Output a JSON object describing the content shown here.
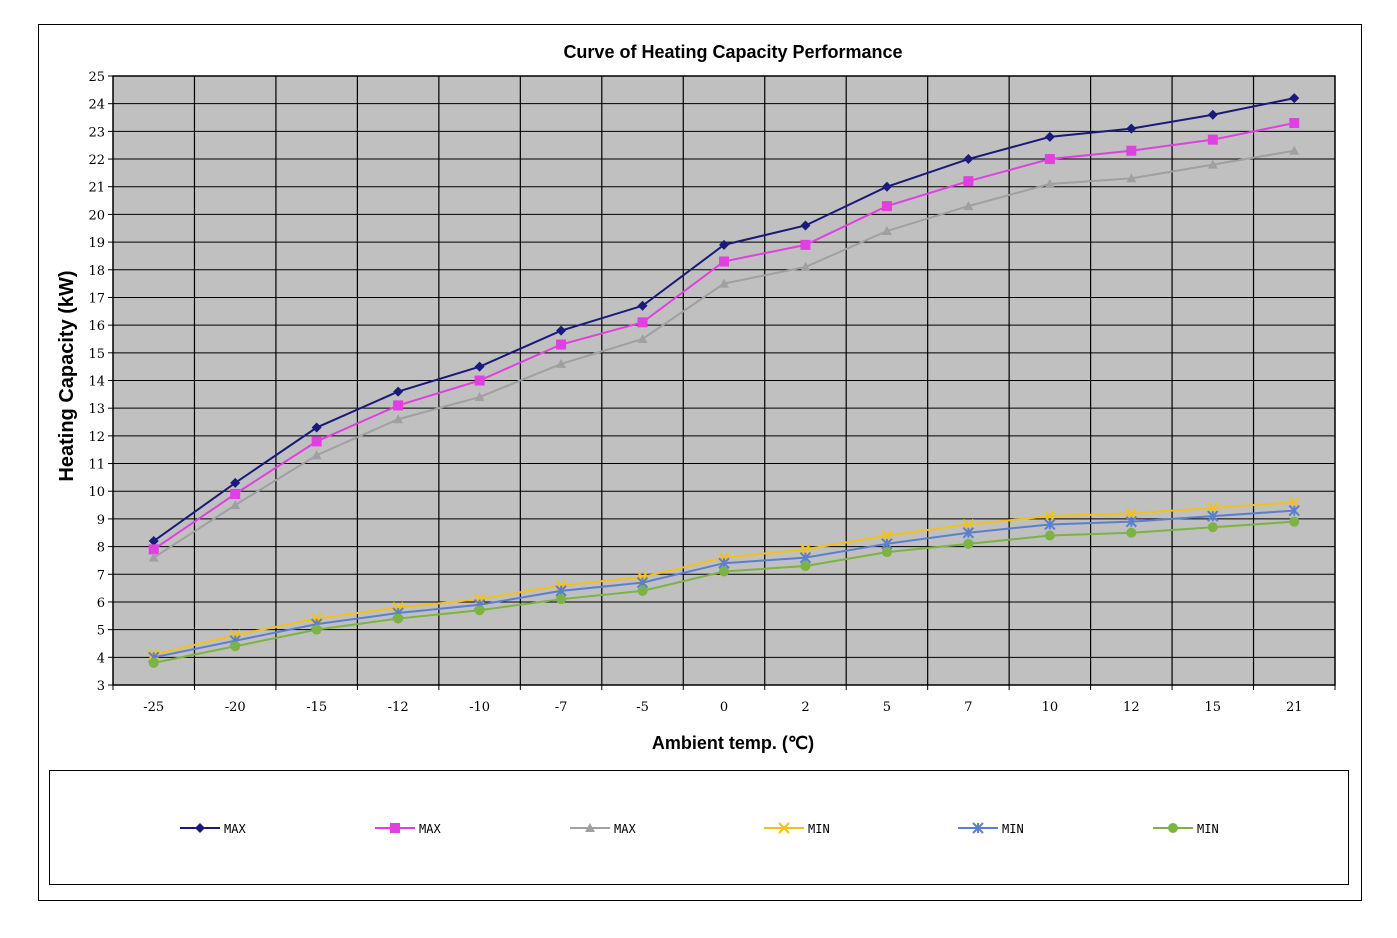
{
  "chart_data": {
    "type": "line",
    "title": "Curve of Heating Capacity Performance",
    "xlabel": "Ambient temp.  (℃)",
    "ylabel": "Heating Capacity (kW)",
    "categories": [
      "-25",
      "-20",
      "-15",
      "-12",
      "-10",
      "-7",
      "-5",
      "0",
      "2",
      "5",
      "7",
      "10",
      "12",
      "15",
      "21"
    ],
    "ylim": [
      3,
      25
    ],
    "yticks": [
      "3",
      "4",
      "5",
      "6",
      "7",
      "8",
      "9",
      "10",
      "11",
      "12",
      "13",
      "14",
      "15",
      "16",
      "17",
      "18",
      "19",
      "20",
      "21",
      "22",
      "23",
      "24",
      "25"
    ],
    "grid": true,
    "plot_background": "#c0c0c0",
    "legend_position": "bottom",
    "series": [
      {
        "name": "MAX",
        "color": "#1a1a7a",
        "marker": "diamond",
        "values": [
          8.2,
          10.3,
          12.3,
          13.6,
          14.5,
          15.8,
          16.7,
          18.9,
          19.6,
          21.0,
          22.0,
          22.8,
          23.1,
          23.6,
          24.2
        ]
      },
      {
        "name": "MAX",
        "color": "#e040e0",
        "marker": "square",
        "values": [
          7.9,
          9.9,
          11.8,
          13.1,
          14.0,
          15.3,
          16.1,
          18.3,
          18.9,
          20.3,
          21.2,
          22.0,
          22.3,
          22.7,
          23.3
        ]
      },
      {
        "name": "MAX",
        "color": "#a0a0a0",
        "marker": "triangle",
        "values": [
          7.6,
          9.5,
          11.3,
          12.6,
          13.4,
          14.6,
          15.5,
          17.5,
          18.1,
          19.4,
          20.3,
          21.1,
          21.3,
          21.8,
          22.3
        ]
      },
      {
        "name": "MIN",
        "color": "#f2c21a",
        "marker": "x",
        "values": [
          4.1,
          4.8,
          5.4,
          5.8,
          6.1,
          6.6,
          6.9,
          7.6,
          7.9,
          8.4,
          8.8,
          9.1,
          9.2,
          9.4,
          9.6
        ]
      },
      {
        "name": "MIN",
        "color": "#5b7fcf",
        "marker": "star",
        "values": [
          4.0,
          4.6,
          5.2,
          5.6,
          5.9,
          6.4,
          6.7,
          7.4,
          7.6,
          8.1,
          8.5,
          8.8,
          8.9,
          9.1,
          9.3
        ]
      },
      {
        "name": "MIN",
        "color": "#7cb342",
        "marker": "circle",
        "values": [
          3.8,
          4.4,
          5.0,
          5.4,
          5.7,
          6.1,
          6.4,
          7.1,
          7.3,
          7.8,
          8.1,
          8.4,
          8.5,
          8.7,
          8.9
        ]
      }
    ]
  }
}
